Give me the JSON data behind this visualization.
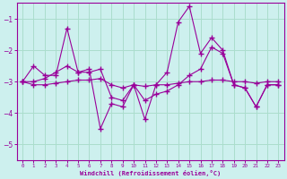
{
  "xlabel": "Windchill (Refroidissement éolien,°C)",
  "bg_color": "#cdf0ee",
  "line_color": "#990099",
  "grid_color": "#aaddcc",
  "xlim": [
    -0.5,
    23.5
  ],
  "ylim": [
    -5.5,
    -0.5
  ],
  "yticks": [
    -5,
    -4,
    -3,
    -2,
    -1
  ],
  "xticks": [
    0,
    1,
    2,
    3,
    4,
    5,
    6,
    7,
    8,
    9,
    10,
    11,
    12,
    13,
    14,
    15,
    16,
    17,
    18,
    19,
    20,
    21,
    22,
    23
  ],
  "x": [
    0,
    1,
    2,
    3,
    4,
    5,
    6,
    7,
    8,
    9,
    10,
    11,
    12,
    13,
    14,
    15,
    16,
    17,
    18,
    19,
    20,
    21,
    22,
    23
  ],
  "y_zigzag": [
    -3.0,
    -2.5,
    -2.8,
    -2.8,
    -1.3,
    -2.7,
    -2.6,
    -4.5,
    -3.7,
    -3.8,
    -3.1,
    -4.2,
    -3.1,
    -2.7,
    -1.1,
    -0.6,
    -2.1,
    -1.6,
    -2.0,
    -3.1,
    -3.2,
    -3.8,
    -3.1,
    -3.1
  ],
  "y_diagonal": [
    -3.0,
    -3.0,
    -2.9,
    -2.7,
    -2.5,
    -2.7,
    -2.7,
    -2.6,
    -3.5,
    -3.6,
    -3.1,
    -3.6,
    -3.4,
    -3.3,
    -3.1,
    -2.8,
    -2.6,
    -1.9,
    -2.1,
    -3.1,
    -3.2,
    -3.8,
    -3.1,
    -3.1
  ],
  "y_flat": [
    -3.0,
    -3.1,
    -3.1,
    -3.05,
    -3.0,
    -2.95,
    -2.95,
    -2.9,
    -3.1,
    -3.2,
    -3.1,
    -3.15,
    -3.1,
    -3.1,
    -3.05,
    -3.0,
    -3.0,
    -2.95,
    -2.95,
    -3.0,
    -3.0,
    -3.05,
    -3.0,
    -3.0
  ]
}
